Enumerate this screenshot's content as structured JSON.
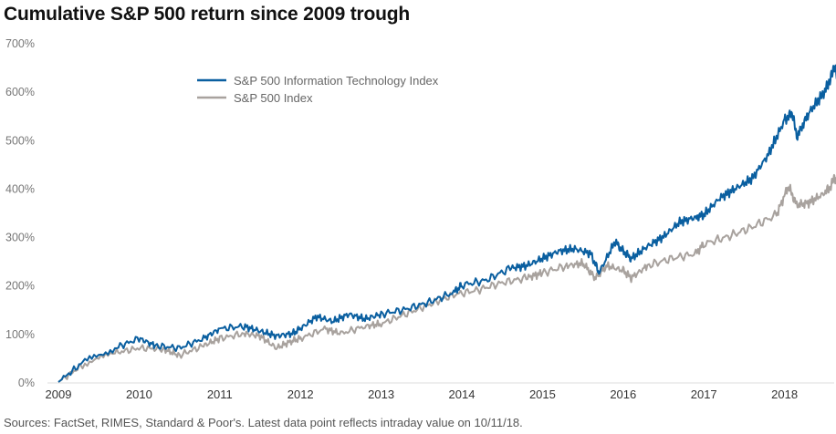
{
  "chart_data": {
    "type": "line",
    "title": "Cumulative S&P 500 return since 2009 trough",
    "xlabel": "",
    "ylabel": "",
    "ylim": [
      0,
      700
    ],
    "yticks": [
      "0%",
      "100%",
      "200%",
      "300%",
      "400%",
      "500%",
      "600%",
      "700%"
    ],
    "yvalues": [
      0,
      100,
      200,
      300,
      400,
      500,
      600,
      700
    ],
    "xticks": [
      "2009",
      "2010",
      "2011",
      "2012",
      "2013",
      "2014",
      "2015",
      "2016",
      "2017",
      "2018"
    ],
    "grid": false,
    "legend_position": "top-center",
    "series": [
      {
        "name": "S&P 500 Information Technology Index",
        "color": "#0a5fa0",
        "x": [
          2009.0,
          2009.3,
          2009.7,
          2010.0,
          2010.2,
          2010.5,
          2010.8,
          2011.0,
          2011.3,
          2011.5,
          2011.7,
          2011.9,
          2012.0,
          2012.2,
          2012.4,
          2012.6,
          2012.8,
          2013.0,
          2013.3,
          2013.6,
          2013.9,
          2014.0,
          2014.3,
          2014.6,
          2014.8,
          2015.0,
          2015.2,
          2015.4,
          2015.6,
          2015.7,
          2015.9,
          2016.0,
          2016.1,
          2016.3,
          2016.5,
          2016.7,
          2016.9,
          2017.0,
          2017.2,
          2017.4,
          2017.6,
          2017.8,
          2018.0,
          2018.1,
          2018.15,
          2018.3,
          2018.5,
          2018.58,
          2018.62,
          2018.68
        ],
        "y": [
          0,
          40,
          70,
          90,
          75,
          70,
          90,
          110,
          115,
          105,
          95,
          100,
          110,
          135,
          125,
          140,
          130,
          140,
          150,
          165,
          185,
          200,
          210,
          235,
          240,
          255,
          270,
          275,
          265,
          225,
          290,
          270,
          255,
          280,
          300,
          330,
          340,
          345,
          380,
          400,
          420,
          470,
          540,
          555,
          505,
          555,
          600,
          630,
          655,
          600
        ]
      },
      {
        "name": "S&P 500 Index",
        "color": "#a8a29e",
        "x": [
          2009.0,
          2009.3,
          2009.7,
          2010.0,
          2010.3,
          2010.5,
          2010.8,
          2011.0,
          2011.3,
          2011.5,
          2011.7,
          2011.9,
          2012.0,
          2012.3,
          2012.5,
          2012.8,
          2013.0,
          2013.3,
          2013.6,
          2013.9,
          2014.2,
          2014.5,
          2014.8,
          2015.0,
          2015.3,
          2015.5,
          2015.65,
          2015.8,
          2016.0,
          2016.1,
          2016.3,
          2016.6,
          2016.9,
          2017.0,
          2017.3,
          2017.6,
          2017.9,
          2018.05,
          2018.15,
          2018.3,
          2018.5,
          2018.58,
          2018.62,
          2018.68
        ],
        "y": [
          0,
          35,
          60,
          70,
          68,
          55,
          75,
          90,
          100,
          95,
          70,
          85,
          90,
          110,
          100,
          115,
          120,
          140,
          160,
          180,
          190,
          205,
          215,
          225,
          240,
          245,
          215,
          240,
          230,
          215,
          240,
          255,
          265,
          285,
          300,
          320,
          345,
          405,
          365,
          370,
          390,
          405,
          425,
          395
        ]
      }
    ]
  },
  "source_note": "Sources: FactSet, RIMES, Standard & Poor's. Latest data point reflects intraday value on 10/11/18."
}
